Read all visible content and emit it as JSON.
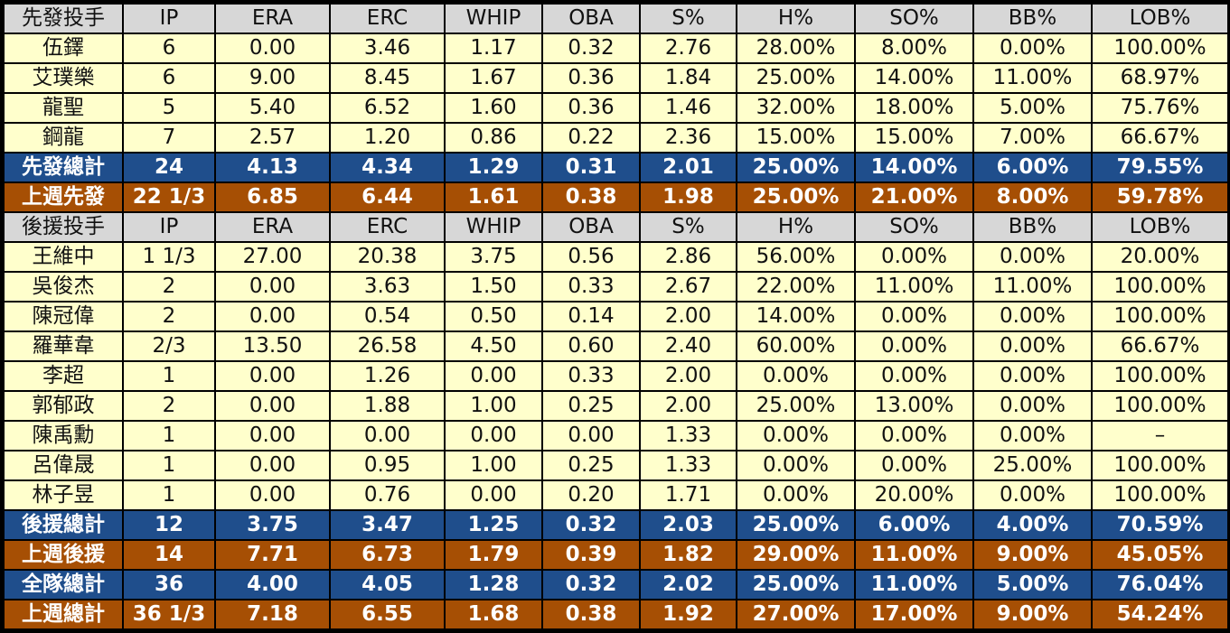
{
  "columns": [
    "IP",
    "ERA",
    "ERC",
    "WHIP",
    "OBA",
    "S%",
    "H%",
    "SO%",
    "BB%",
    "LOB%"
  ],
  "sections": [
    {
      "header": "先發投手",
      "rows": [
        {
          "name": "伍鐸",
          "values": [
            "6",
            "0.00",
            "3.46",
            "1.17",
            "0.32",
            "2.76",
            "28.00%",
            "8.00%",
            "0.00%",
            "100.00%"
          ]
        },
        {
          "name": "艾璞樂",
          "values": [
            "6",
            "9.00",
            "8.45",
            "1.67",
            "0.36",
            "1.84",
            "25.00%",
            "14.00%",
            "11.00%",
            "68.97%"
          ]
        },
        {
          "name": "龍聖",
          "values": [
            "5",
            "5.40",
            "6.52",
            "1.60",
            "0.36",
            "1.46",
            "32.00%",
            "18.00%",
            "5.00%",
            "75.76%"
          ]
        },
        {
          "name": "鋼龍",
          "values": [
            "7",
            "2.57",
            "1.20",
            "0.86",
            "0.22",
            "2.36",
            "15.00%",
            "15.00%",
            "7.00%",
            "66.67%"
          ]
        }
      ],
      "totals": [
        {
          "name": "先發總計",
          "style": "blue",
          "values": [
            "24",
            "4.13",
            "4.34",
            "1.29",
            "0.31",
            "2.01",
            "25.00%",
            "14.00%",
            "6.00%",
            "79.55%"
          ]
        },
        {
          "name": "上週先發",
          "style": "orange",
          "values": [
            "22 1/3",
            "6.85",
            "6.44",
            "1.61",
            "0.38",
            "1.98",
            "25.00%",
            "21.00%",
            "8.00%",
            "59.78%"
          ]
        }
      ]
    },
    {
      "header": "後援投手",
      "rows": [
        {
          "name": "王維中",
          "values": [
            "1 1/3",
            "27.00",
            "20.38",
            "3.75",
            "0.56",
            "2.86",
            "56.00%",
            "0.00%",
            "0.00%",
            "20.00%"
          ]
        },
        {
          "name": "吳俊杰",
          "values": [
            "2",
            "0.00",
            "3.63",
            "1.50",
            "0.33",
            "2.67",
            "22.00%",
            "11.00%",
            "11.00%",
            "100.00%"
          ]
        },
        {
          "name": "陳冠偉",
          "values": [
            "2",
            "0.00",
            "0.54",
            "0.50",
            "0.14",
            "2.00",
            "14.00%",
            "0.00%",
            "0.00%",
            "100.00%"
          ]
        },
        {
          "name": "羅華韋",
          "values": [
            "2/3",
            "13.50",
            "26.58",
            "4.50",
            "0.60",
            "2.40",
            "60.00%",
            "0.00%",
            "0.00%",
            "66.67%"
          ]
        },
        {
          "name": "李超",
          "values": [
            "1",
            "0.00",
            "1.26",
            "0.00",
            "0.33",
            "2.00",
            "0.00%",
            "0.00%",
            "0.00%",
            "100.00%"
          ]
        },
        {
          "name": "郭郁政",
          "values": [
            "2",
            "0.00",
            "1.88",
            "1.00",
            "0.25",
            "2.00",
            "25.00%",
            "13.00%",
            "0.00%",
            "100.00%"
          ]
        },
        {
          "name": "陳禹勳",
          "values": [
            "1",
            "0.00",
            "0.00",
            "0.00",
            "0.00",
            "1.33",
            "0.00%",
            "0.00%",
            "0.00%",
            "–"
          ]
        },
        {
          "name": "呂偉晟",
          "values": [
            "1",
            "0.00",
            "0.95",
            "1.00",
            "0.25",
            "1.33",
            "0.00%",
            "0.00%",
            "25.00%",
            "100.00%"
          ]
        },
        {
          "name": "林子昱",
          "values": [
            "1",
            "0.00",
            "0.76",
            "0.00",
            "0.20",
            "1.71",
            "0.00%",
            "20.00%",
            "0.00%",
            "100.00%"
          ]
        }
      ],
      "totals": [
        {
          "name": "後援總計",
          "style": "blue",
          "values": [
            "12",
            "3.75",
            "3.47",
            "1.25",
            "0.32",
            "2.03",
            "25.00%",
            "6.00%",
            "4.00%",
            "70.59%"
          ]
        },
        {
          "name": "上週後援",
          "style": "orange",
          "values": [
            "14",
            "7.71",
            "6.73",
            "1.79",
            "0.39",
            "1.82",
            "29.00%",
            "11.00%",
            "9.00%",
            "45.05%"
          ]
        },
        {
          "name": "全隊總計",
          "style": "blue",
          "values": [
            "36",
            "4.00",
            "4.05",
            "1.28",
            "0.32",
            "2.02",
            "25.00%",
            "11.00%",
            "5.00%",
            "76.04%"
          ]
        },
        {
          "name": "上週總計",
          "style": "orange",
          "values": [
            "36 1/3",
            "7.18",
            "6.55",
            "1.68",
            "0.38",
            "1.92",
            "27.00%",
            "17.00%",
            "9.00%",
            "54.24%"
          ]
        }
      ]
    }
  ]
}
